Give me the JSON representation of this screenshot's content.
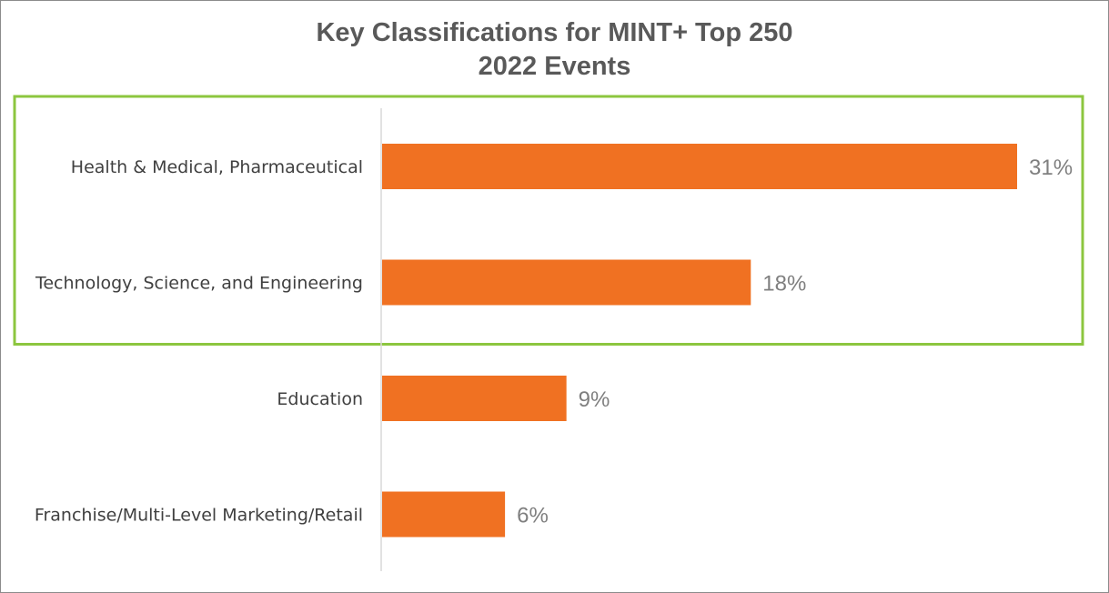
{
  "chart_data": {
    "type": "bar",
    "orientation": "horizontal",
    "title": [
      "Key Classifications for MINT+ Top 250",
      "2022 Events"
    ],
    "categories": [
      "Health & Medical, Pharmaceutical",
      "Technology, Science, and Engineering",
      "Education",
      "Franchise/Multi-Level Marketing/Retail"
    ],
    "values": [
      31,
      18,
      9,
      6
    ],
    "value_labels": [
      "31%",
      "18%",
      "9%",
      "6%"
    ],
    "unit": "%",
    "xlim": [
      0,
      31
    ],
    "grid": false,
    "legend": "none",
    "highlight": {
      "categories": [
        "Health & Medical, Pharmaceutical",
        "Technology, Science, and Engineering"
      ],
      "color": "#8cc63f"
    },
    "colors": {
      "bar": "#f07122",
      "axis": "#d9d9d9",
      "title": "#595959",
      "category_text": "#404040",
      "value_text": "#7f7f7f",
      "frame": "#8c8c8c"
    }
  }
}
